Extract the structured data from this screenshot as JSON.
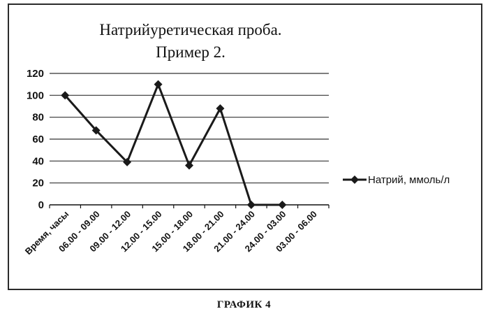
{
  "caption": "ГРАФИК 4",
  "colors": {
    "series": "#1a1a1a",
    "grid": "#333333",
    "frame": "#2b2b2b"
  },
  "chart_data": {
    "type": "line",
    "title_lines": [
      "Натрийуретическая проба.",
      "Пример 2."
    ],
    "xlabel": "",
    "ylabel": "",
    "categories": [
      "Время, часы",
      "06.00 - 09.00",
      "09.00 - 12.00",
      "12.00 - 15.00",
      "15.00 - 18.00",
      "18.00 - 21.00",
      "21.00 - 24.00",
      "24.00 - 03.00",
      "03.00 - 06.00"
    ],
    "yticks": [
      0,
      20,
      40,
      60,
      80,
      100,
      120
    ],
    "ylim": [
      0,
      120
    ],
    "grid": true,
    "legend": "right",
    "series": [
      {
        "name": "Натрий, ммоль/л",
        "marker": "diamond",
        "values": [
          100,
          68,
          39,
          110,
          36,
          88,
          0,
          0,
          null
        ]
      }
    ]
  }
}
